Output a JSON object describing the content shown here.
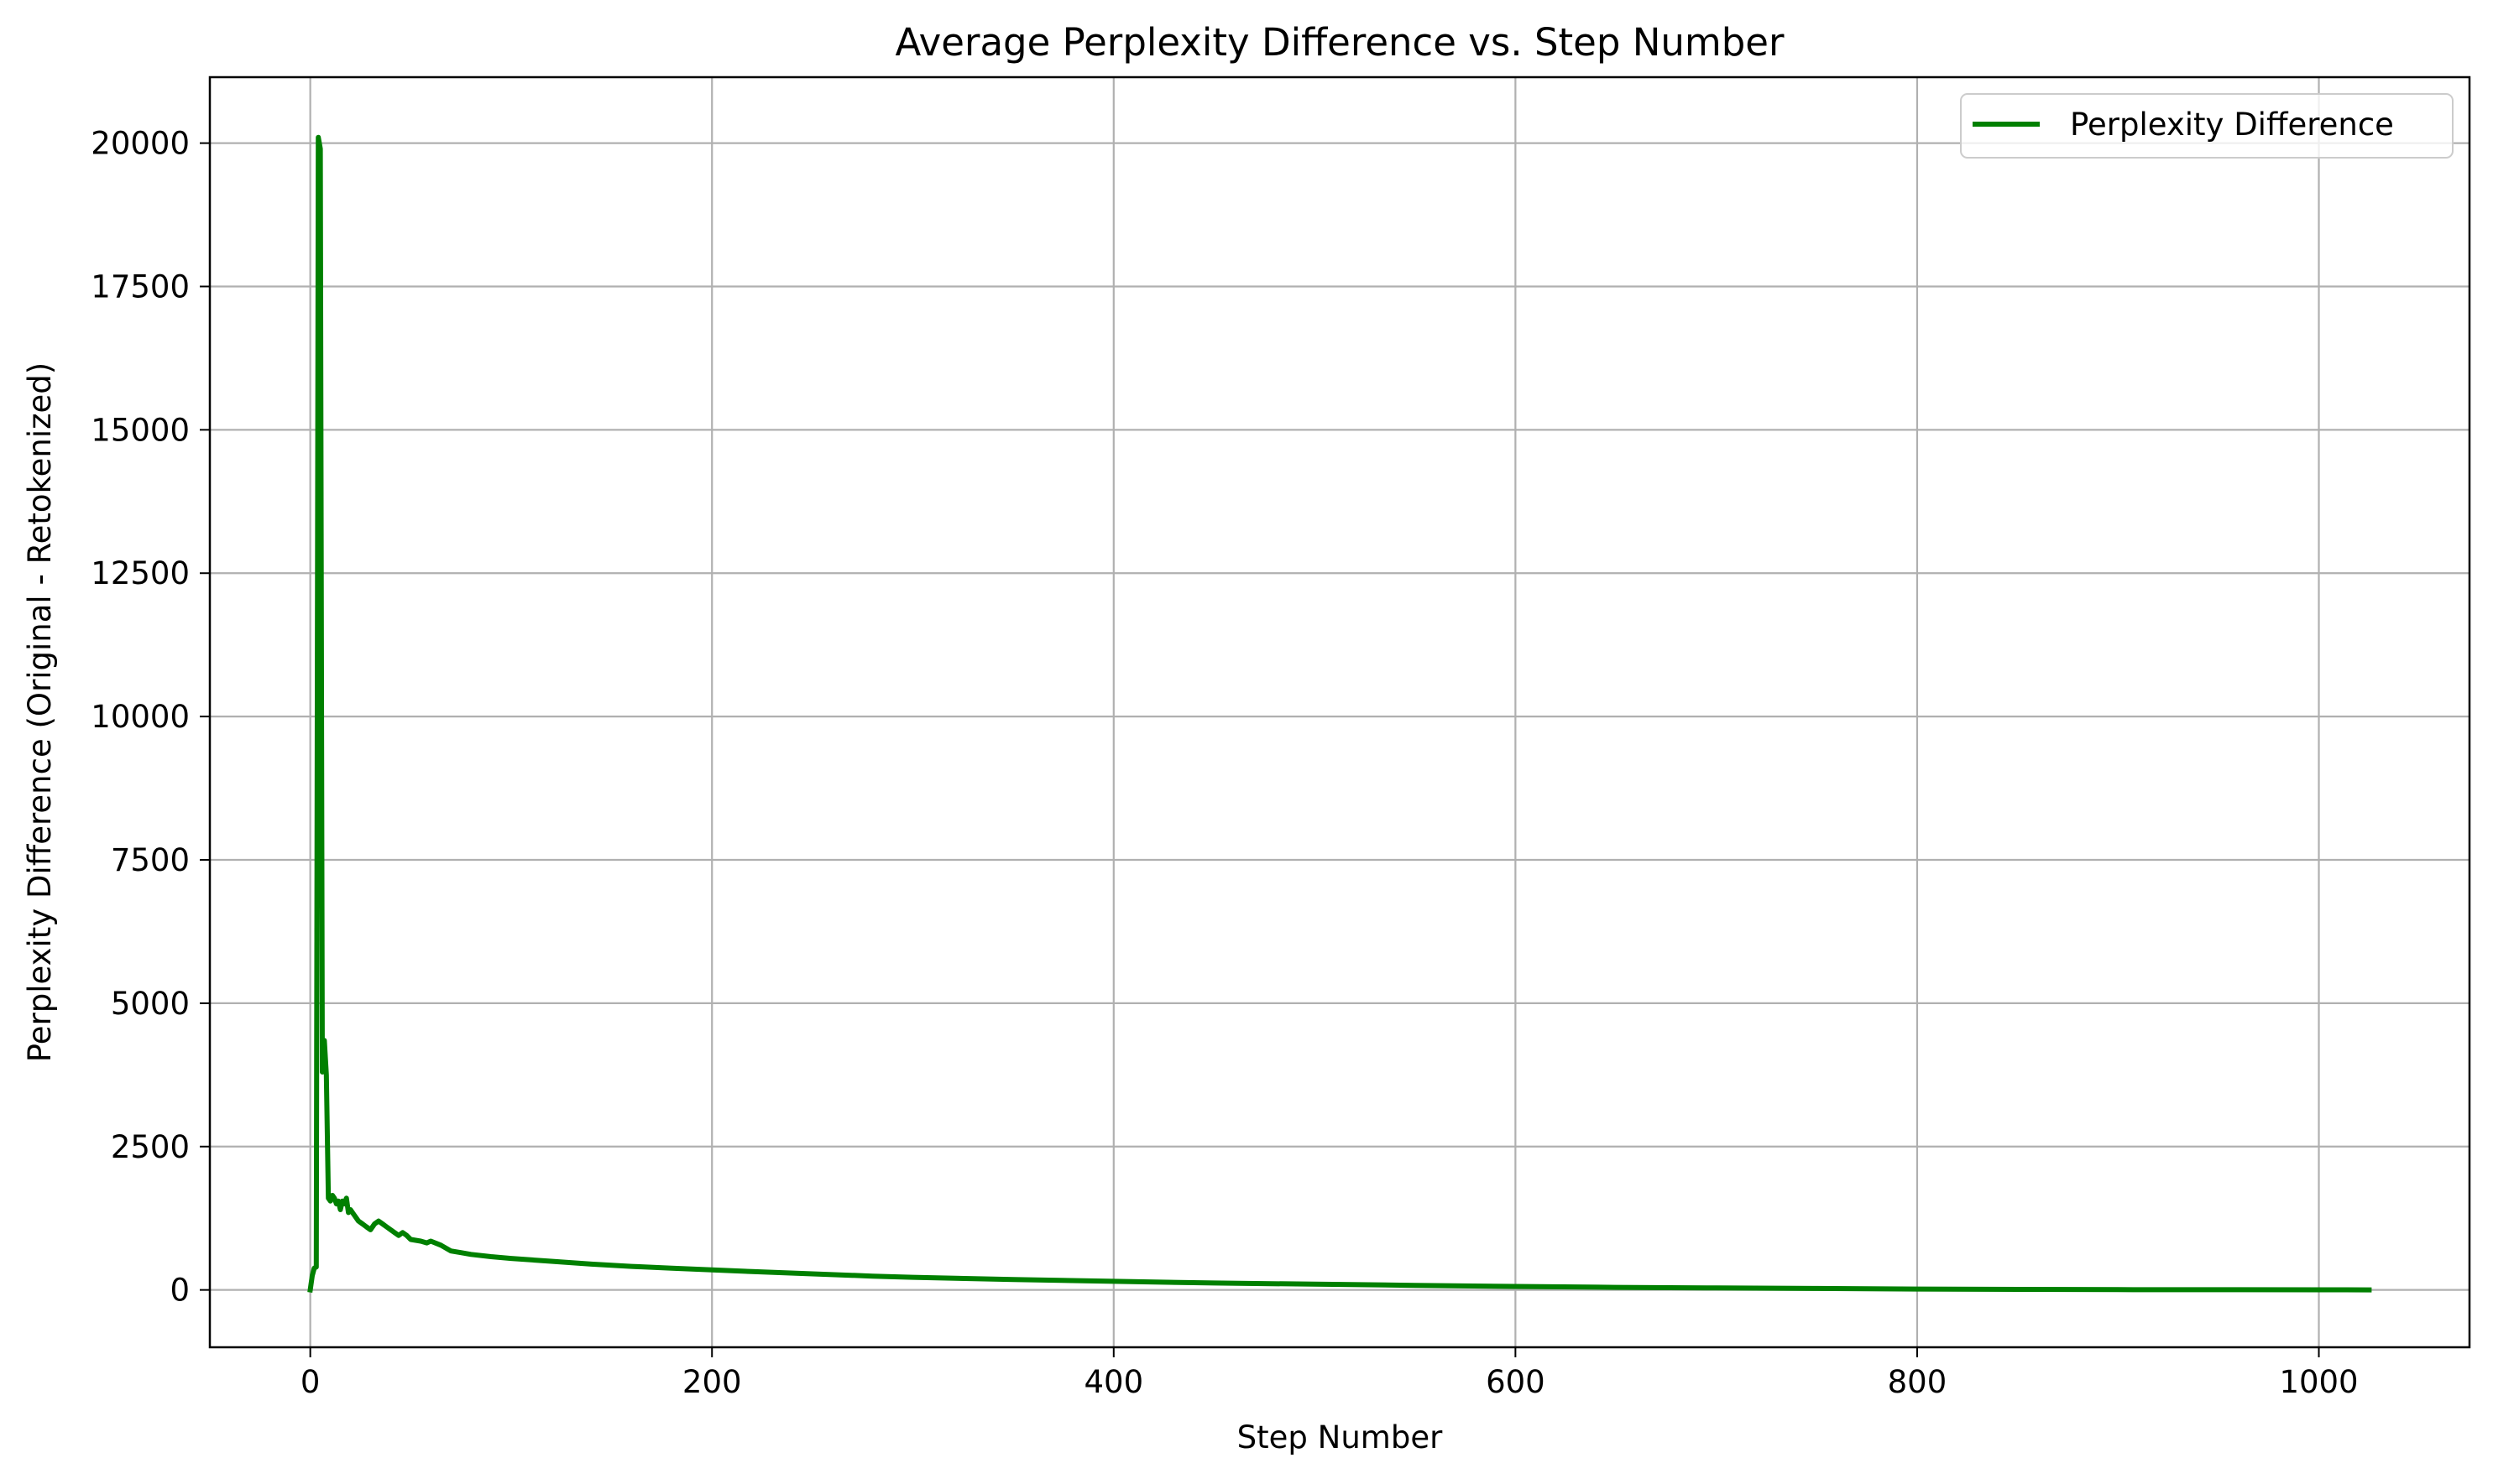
{
  "chart_data": {
    "type": "line",
    "title": "Average Perplexity Difference vs. Step Number",
    "xlabel": "Step Number",
    "ylabel": "Perplexity Difference (Original - Retokenized)",
    "xlim": [
      -50,
      1075
    ],
    "ylim": [
      -1000,
      21150
    ],
    "x_ticks": [
      0,
      200,
      400,
      600,
      800,
      1000
    ],
    "y_ticks": [
      0,
      2500,
      5000,
      7500,
      10000,
      12500,
      15000,
      17500,
      20000
    ],
    "x_tick_labels": [
      "0",
      "200",
      "400",
      "600",
      "800",
      "1000"
    ],
    "y_tick_labels": [
      "0",
      "2500",
      "5000",
      "7500",
      "10000",
      "12500",
      "15000",
      "17500",
      "20000"
    ],
    "grid": true,
    "legend_position": "top-right",
    "series": [
      {
        "name": "Perplexity Difference",
        "color": "#008000",
        "points": [
          [
            0,
            0
          ],
          [
            1,
            250
          ],
          [
            2,
            380
          ],
          [
            3,
            400
          ],
          [
            4,
            20100
          ],
          [
            5,
            19900
          ],
          [
            6,
            3800
          ],
          [
            7,
            4350
          ],
          [
            8,
            3750
          ],
          [
            9,
            1600
          ],
          [
            10,
            1550
          ],
          [
            11,
            1650
          ],
          [
            12,
            1600
          ],
          [
            13,
            1500
          ],
          [
            14,
            1550
          ],
          [
            15,
            1400
          ],
          [
            16,
            1550
          ],
          [
            17,
            1500
          ],
          [
            18,
            1600
          ],
          [
            19,
            1350
          ],
          [
            20,
            1400
          ],
          [
            22,
            1300
          ],
          [
            24,
            1200
          ],
          [
            26,
            1150
          ],
          [
            28,
            1100
          ],
          [
            30,
            1050
          ],
          [
            32,
            1150
          ],
          [
            34,
            1200
          ],
          [
            36,
            1150
          ],
          [
            38,
            1100
          ],
          [
            40,
            1050
          ],
          [
            42,
            1000
          ],
          [
            44,
            950
          ],
          [
            46,
            1000
          ],
          [
            48,
            950
          ],
          [
            50,
            880
          ],
          [
            55,
            850
          ],
          [
            58,
            820
          ],
          [
            60,
            850
          ],
          [
            65,
            780
          ],
          [
            70,
            680
          ],
          [
            75,
            650
          ],
          [
            80,
            620
          ],
          [
            90,
            580
          ],
          [
            100,
            550
          ],
          [
            120,
            500
          ],
          [
            140,
            450
          ],
          [
            160,
            410
          ],
          [
            180,
            380
          ],
          [
            200,
            350
          ],
          [
            220,
            320
          ],
          [
            250,
            280
          ],
          [
            280,
            240
          ],
          [
            300,
            220
          ],
          [
            350,
            180
          ],
          [
            400,
            150
          ],
          [
            450,
            120
          ],
          [
            500,
            100
          ],
          [
            550,
            80
          ],
          [
            600,
            60
          ],
          [
            650,
            45
          ],
          [
            700,
            35
          ],
          [
            750,
            25
          ],
          [
            800,
            15
          ],
          [
            850,
            10
          ],
          [
            900,
            5
          ],
          [
            950,
            3
          ],
          [
            1000,
            2
          ],
          [
            1025,
            1
          ]
        ]
      }
    ]
  }
}
